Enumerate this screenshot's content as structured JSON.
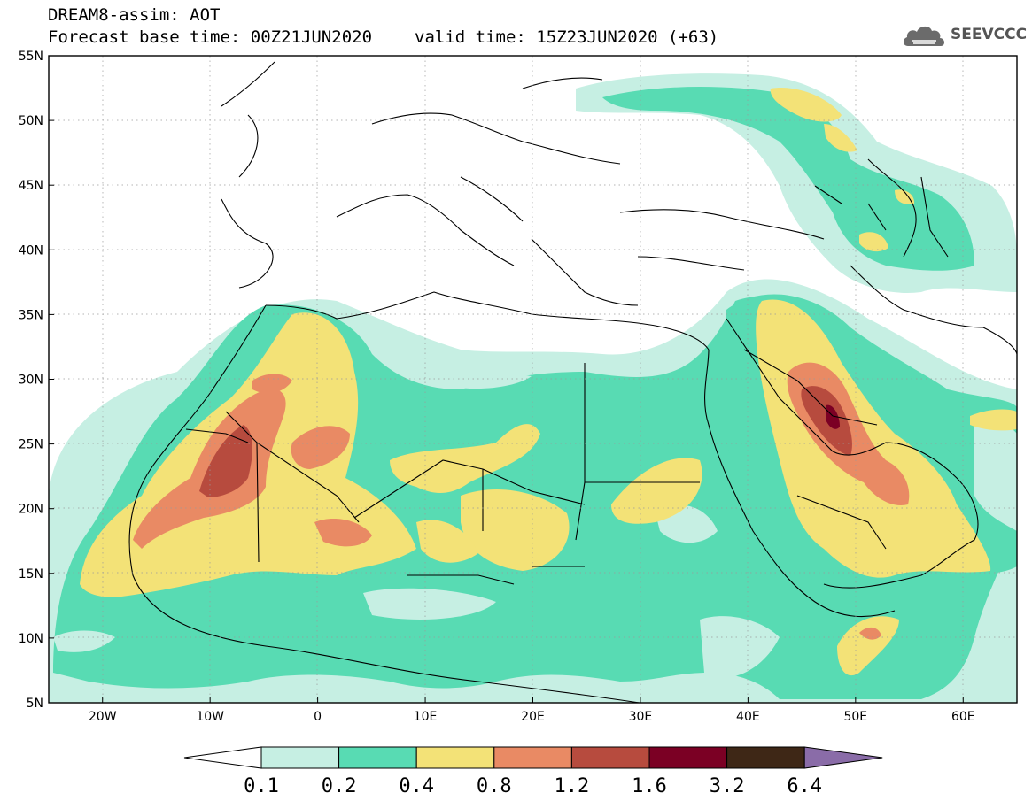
{
  "header": {
    "line1": "DREAM8-assim: AOT",
    "forecast": "Forecast base time: 00Z21JUN2020",
    "valid": "valid time: 15Z23JUN2020 (+63)"
  },
  "logo": {
    "text": "SEEVCCC",
    "icon": "cloud-icon"
  },
  "map": {
    "lat_labels": [
      "55N",
      "50N",
      "45N",
      "40N",
      "35N",
      "30N",
      "25N",
      "20N",
      "15N",
      "10N",
      "5N"
    ],
    "lon_labels": [
      "20W",
      "10W",
      "0",
      "10E",
      "20E",
      "30E",
      "40E",
      "50E",
      "60E"
    ],
    "lon_range": [
      -25,
      65
    ],
    "lat_range": [
      5,
      55
    ]
  },
  "legend": {
    "levels": [
      "0.1",
      "0.2",
      "0.4",
      "0.8",
      "1.2",
      "1.6",
      "3.2",
      "6.4"
    ],
    "colors": [
      "#ffffff",
      "#c6efe3",
      "#58dbb3",
      "#f3e277",
      "#e98a64",
      "#b74b3e",
      "#7b0024",
      "#3e2716",
      "#8a6ca8"
    ]
  }
}
